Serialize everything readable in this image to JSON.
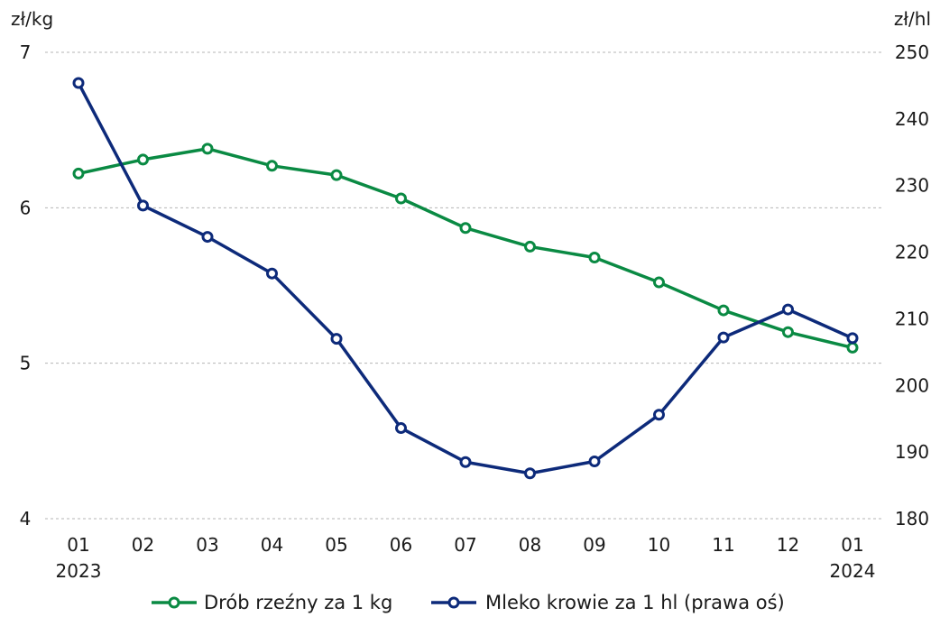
{
  "chart_data": {
    "type": "line",
    "title": "",
    "left_axis": {
      "unit": "zł/kg",
      "ylim": [
        4,
        7
      ],
      "ticks": [
        "4",
        "5",
        "6",
        "7"
      ]
    },
    "right_axis": {
      "unit": "zł/hl",
      "ylim": [
        180,
        250
      ],
      "ticks": [
        "180",
        "190",
        "200",
        "210",
        "220",
        "230",
        "240",
        "250"
      ]
    },
    "x": [
      "01",
      "02",
      "03",
      "04",
      "05",
      "06",
      "07",
      "08",
      "09",
      "10",
      "11",
      "12",
      "01"
    ],
    "x_sublabels": {
      "first": "2023",
      "last": "2024"
    },
    "grid": "horizontal dashed",
    "legend_placement": "bottom",
    "series": [
      {
        "name": "Drób rzeźny za 1 kg",
        "axis": "left",
        "color": "#0a8a43",
        "values": [
          6.22,
          6.31,
          6.38,
          6.27,
          6.21,
          6.06,
          5.87,
          5.75,
          5.68,
          5.52,
          5.34,
          5.2,
          5.1
        ]
      },
      {
        "name": "Mleko krowie za 1 hl (prawa oś)",
        "axis": "right",
        "color": "#0d2a7a",
        "values": [
          245.4,
          227.0,
          222.3,
          216.8,
          207.0,
          193.6,
          188.5,
          186.8,
          188.6,
          195.6,
          207.2,
          211.4,
          207.1
        ]
      }
    ]
  }
}
